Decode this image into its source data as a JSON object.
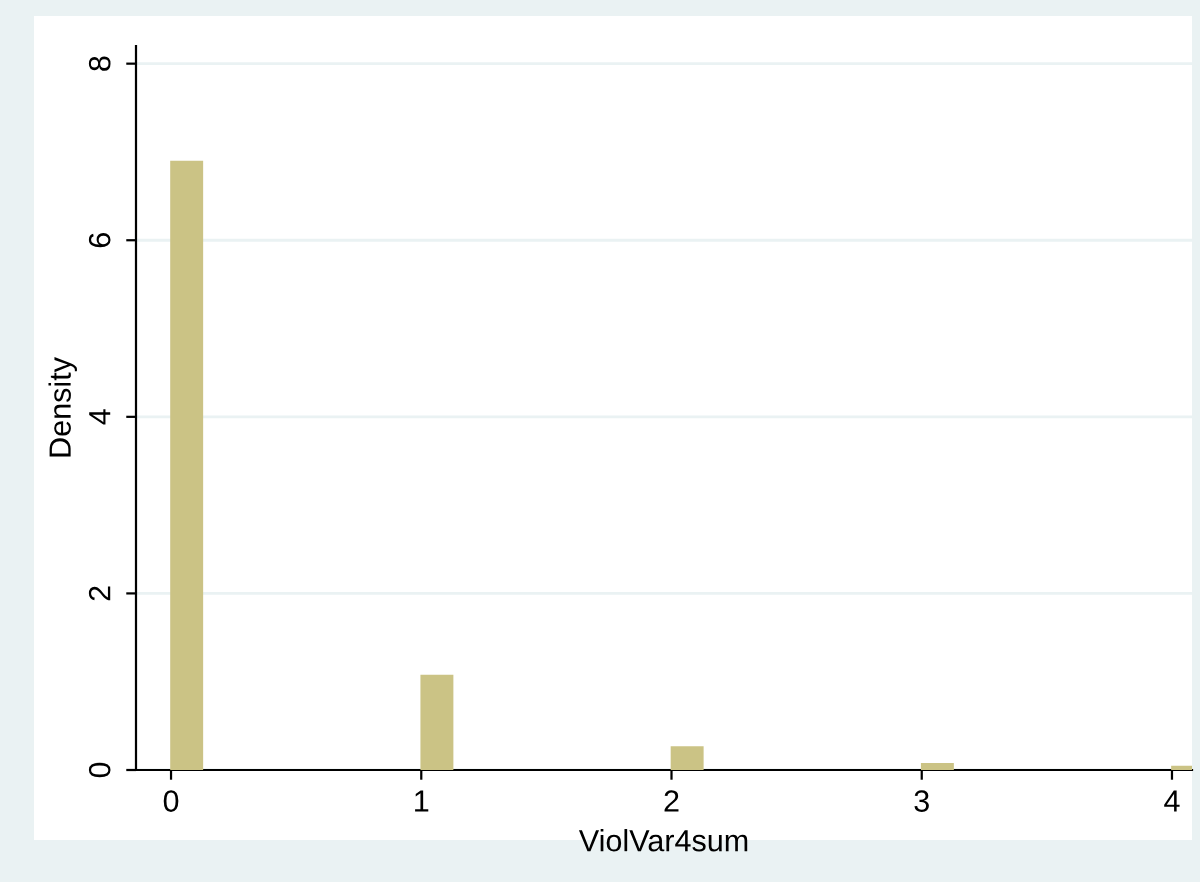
{
  "chart_data": {
    "type": "histogram",
    "xlabel": "ViolVar4sum",
    "ylabel": "Density",
    "bins": [
      0,
      0.125,
      0.25,
      0.375,
      0.5,
      0.625,
      0.75,
      0.875,
      1,
      1.125,
      1.25,
      1.375,
      1.5,
      1.625,
      1.75,
      1.875,
      2,
      2.125,
      2.25,
      2.375,
      2.5,
      2.625,
      2.75,
      2.875,
      3,
      3.125,
      3.25,
      3.375,
      3.5,
      3.625,
      3.75,
      3.875,
      4,
      4.125
    ],
    "values": [
      6.89,
      0,
      0,
      0,
      0,
      0,
      0,
      0,
      1.07,
      0,
      0,
      0,
      0,
      0,
      0,
      0,
      0.26,
      0,
      0,
      0,
      0,
      0,
      0,
      0,
      0.07,
      0,
      0,
      0,
      0,
      0,
      0,
      0,
      0.04
    ],
    "color": "#cbc385",
    "xlim": [
      -0.14,
      4.08
    ],
    "ylim": [
      0,
      8.2
    ],
    "xticks": [
      0,
      1,
      2,
      3,
      4
    ],
    "yticks": [
      0,
      2,
      4,
      6,
      8
    ],
    "grid": "y"
  }
}
